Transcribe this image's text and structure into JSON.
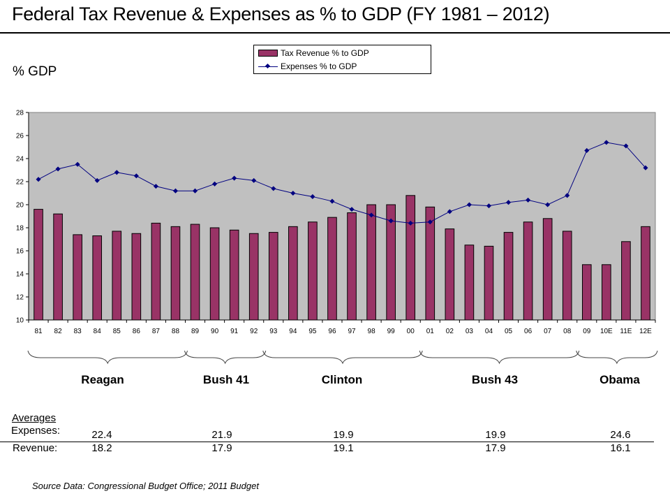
{
  "title": "Federal Tax Revenue & Expenses as % to GDP (FY 1981 – 2012)",
  "y_axis_label": "% GDP",
  "legend": {
    "revenue_label": "Tax Revenue % to GDP",
    "expenses_label": "Expenses % to GDP"
  },
  "colors": {
    "revenue_bar": "#993366",
    "expenses_line": "#000080",
    "plot_background": "#C0C0C0"
  },
  "chart_data": {
    "type": "bar",
    "title": "Federal Tax Revenue & Expenses as % to GDP (FY 1981 – 2012)",
    "xlabel": "",
    "ylabel": "% GDP",
    "ylim": [
      10,
      28
    ],
    "yticks": [
      10,
      12,
      14,
      16,
      18,
      20,
      22,
      24,
      26,
      28
    ],
    "grid": false,
    "legend_position": "top-center",
    "categories": [
      "81",
      "82",
      "83",
      "84",
      "85",
      "86",
      "87",
      "88",
      "89",
      "90",
      "91",
      "92",
      "93",
      "94",
      "95",
      "96",
      "97",
      "98",
      "99",
      "00",
      "01",
      "02",
      "03",
      "04",
      "05",
      "06",
      "07",
      "08",
      "09",
      "10E",
      "11E",
      "12E"
    ],
    "series": [
      {
        "name": "Tax Revenue % to GDP",
        "type": "bar",
        "values": [
          19.6,
          19.2,
          17.4,
          17.3,
          17.7,
          17.5,
          18.4,
          18.1,
          18.3,
          18.0,
          17.8,
          17.5,
          17.6,
          18.1,
          18.5,
          18.9,
          19.3,
          20.0,
          20.0,
          20.8,
          19.8,
          17.9,
          16.5,
          16.4,
          17.6,
          18.5,
          18.8,
          17.7,
          14.8,
          14.8,
          16.8,
          18.1
        ]
      },
      {
        "name": "Expenses % to GDP",
        "type": "line",
        "values": [
          22.2,
          23.1,
          23.5,
          22.1,
          22.8,
          22.5,
          21.6,
          21.2,
          21.2,
          21.8,
          22.3,
          22.1,
          21.4,
          21.0,
          20.7,
          20.3,
          19.6,
          19.1,
          18.6,
          18.4,
          18.5,
          19.4,
          20.0,
          19.9,
          20.2,
          20.4,
          20.0,
          20.8,
          24.7,
          25.4,
          25.1,
          23.2
        ]
      }
    ]
  },
  "administrations": [
    {
      "name": "Reagan",
      "from": "81",
      "to": "88",
      "avg_expenses": "22.4",
      "avg_revenue": "18.2"
    },
    {
      "name": "Bush 41",
      "from": "89",
      "to": "92",
      "avg_expenses": "21.9",
      "avg_revenue": "17.9"
    },
    {
      "name": "Clinton",
      "from": "93",
      "to": "00",
      "avg_expenses": "19.9",
      "avg_revenue": "19.1"
    },
    {
      "name": "Bush 43",
      "from": "01",
      "to": "08",
      "avg_expenses": "19.9",
      "avg_revenue": "17.9"
    },
    {
      "name": "Obama",
      "from": "09",
      "to": "12E",
      "avg_expenses": "24.6",
      "avg_revenue": "16.1"
    }
  ],
  "averages": {
    "heading": "Averages",
    "expenses_label": "Expenses:",
    "revenue_label": "Revenue:"
  },
  "source": "Source Data:  Congressional Budget Office; 2011 Budget"
}
